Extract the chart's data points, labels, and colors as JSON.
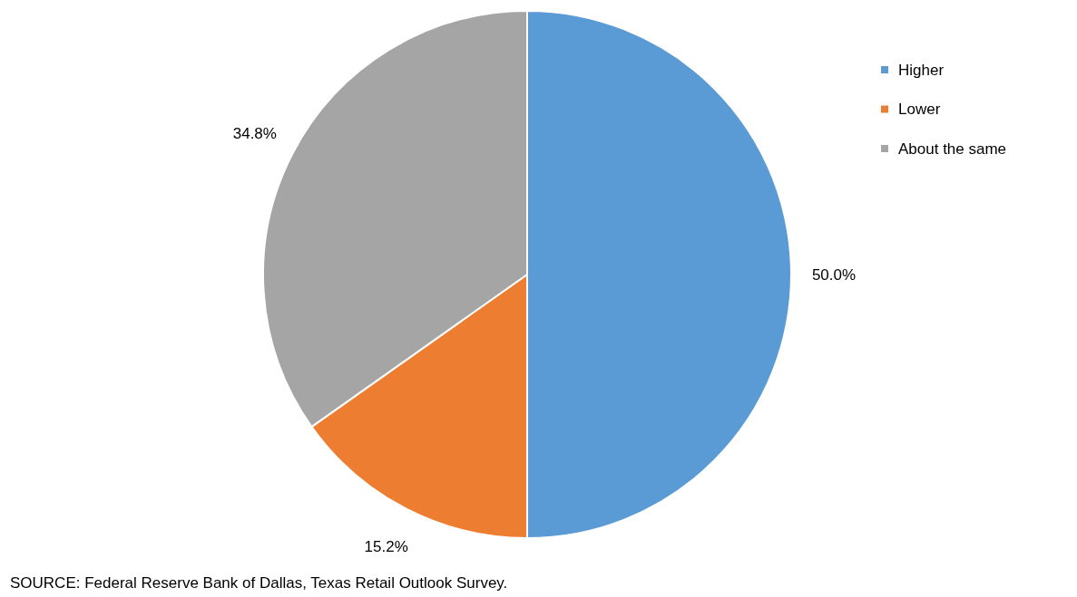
{
  "chart_data": {
    "type": "pie",
    "categories": [
      "Higher",
      "Lower",
      "About the same"
    ],
    "values": [
      50.0,
      15.2,
      34.8
    ],
    "colors": [
      "#5b9bd5",
      "#ed7d31",
      "#a5a5a5"
    ],
    "value_labels": [
      "50.0%",
      "15.2%",
      "34.8%"
    ],
    "legend": "top right",
    "annotations": [
      "SOURCE: Federal Reserve Bank of Dallas, Texas Retail Outlook Survey."
    ]
  }
}
